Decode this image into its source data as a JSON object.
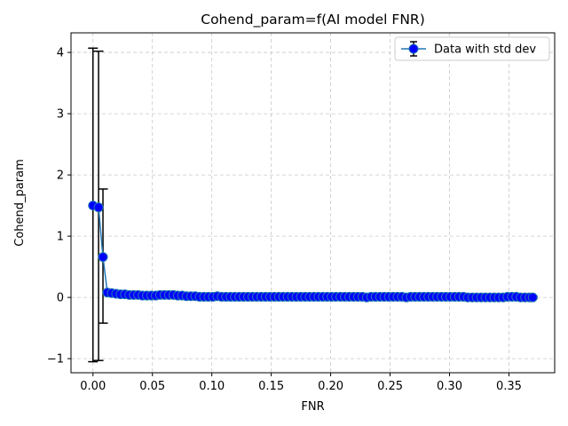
{
  "chart_data": {
    "type": "line",
    "title": "Cohend_param=f(AI model FNR)",
    "xlabel": "FNR",
    "ylabel": "Cohend_param",
    "xlim": [
      -0.0185,
      0.3885
    ],
    "ylim": [
      -1.23,
      4.32
    ],
    "xticks": [
      0.0,
      0.05,
      0.1,
      0.15,
      0.2,
      0.25,
      0.3,
      0.35
    ],
    "xtick_labels": [
      "0.00",
      "0.05",
      "0.10",
      "0.15",
      "0.20",
      "0.25",
      "0.30",
      "0.35"
    ],
    "yticks": [
      -1,
      0,
      1,
      2,
      3,
      4
    ],
    "ytick_labels": [
      "−1",
      "0",
      "1",
      "2",
      "3",
      "4"
    ],
    "grid": true,
    "legend": {
      "position": "top-right",
      "label": "Data with std dev"
    },
    "colors": {
      "line": "#1f77b4",
      "marker": "#0000ff",
      "errorbar": "#000000",
      "grid": "#c8c8c8"
    },
    "series": [
      {
        "name": "Data with std dev",
        "x": [
          0.0,
          0.0047,
          0.0084,
          0.0121,
          0.0158,
          0.0195,
          0.0232,
          0.0269,
          0.0306,
          0.0343,
          0.038,
          0.0417,
          0.0454,
          0.0491,
          0.0528,
          0.0565,
          0.0602,
          0.0639,
          0.0676,
          0.0713,
          0.075,
          0.0787,
          0.0824,
          0.0861,
          0.0898,
          0.0935,
          0.0972,
          0.1009,
          0.1046,
          0.1083,
          0.112,
          0.1157,
          0.1194,
          0.1231,
          0.1268,
          0.1305,
          0.1342,
          0.1379,
          0.1416,
          0.1453,
          0.149,
          0.1527,
          0.1564,
          0.1601,
          0.1638,
          0.1675,
          0.1712,
          0.1749,
          0.1786,
          0.1823,
          0.186,
          0.1897,
          0.1934,
          0.1971,
          0.2008,
          0.2045,
          0.2082,
          0.2119,
          0.2156,
          0.2193,
          0.223,
          0.2267,
          0.2304,
          0.2341,
          0.2378,
          0.2415,
          0.2452,
          0.2489,
          0.2526,
          0.2563,
          0.26,
          0.2637,
          0.2674,
          0.2711,
          0.2748,
          0.2785,
          0.2822,
          0.2859,
          0.2896,
          0.2933,
          0.297,
          0.3007,
          0.3044,
          0.3081,
          0.3118,
          0.3155,
          0.3192,
          0.3229,
          0.3266,
          0.3303,
          0.334,
          0.3377,
          0.3414,
          0.3451,
          0.3488,
          0.3525,
          0.3562,
          0.3599,
          0.3636,
          0.3673,
          0.37
        ],
        "y": [
          1.5,
          1.47,
          0.66,
          0.08,
          0.07,
          0.06,
          0.05,
          0.05,
          0.04,
          0.04,
          0.04,
          0.03,
          0.03,
          0.03,
          0.03,
          0.04,
          0.04,
          0.04,
          0.04,
          0.03,
          0.03,
          0.02,
          0.02,
          0.02,
          0.01,
          0.01,
          0.01,
          0.01,
          0.02,
          0.01,
          0.01,
          0.01,
          0.01,
          0.01,
          0.01,
          0.01,
          0.01,
          0.01,
          0.01,
          0.01,
          0.01,
          0.01,
          0.01,
          0.01,
          0.01,
          0.01,
          0.01,
          0.01,
          0.01,
          0.01,
          0.01,
          0.01,
          0.01,
          0.01,
          0.01,
          0.01,
          0.01,
          0.01,
          0.01,
          0.01,
          0.01,
          0.01,
          0.0,
          0.01,
          0.01,
          0.01,
          0.01,
          0.01,
          0.01,
          0.01,
          0.01,
          0.0,
          0.01,
          0.01,
          0.01,
          0.01,
          0.01,
          0.01,
          0.01,
          0.01,
          0.01,
          0.01,
          0.01,
          0.01,
          0.01,
          0.0,
          0.0,
          0.0,
          0.0,
          0.0,
          0.0,
          0.0,
          0.0,
          0.0,
          0.01,
          0.01,
          0.01,
          0.0,
          0.0,
          0.0,
          0.0
        ],
        "yerr_lower": [
          2.55,
          2.5,
          1.08,
          0.02,
          0.02,
          0.02,
          0.02,
          0.02,
          0.02,
          0.02,
          0.02,
          0.02,
          0.02,
          0.02,
          0.02,
          0.02,
          0.02,
          0.02,
          0.02,
          0.02,
          0.02,
          0.02,
          0.02,
          0.02,
          0.02,
          0.02,
          0.02,
          0.02,
          0.02,
          0.02,
          0.02,
          0.02,
          0.02,
          0.02,
          0.02,
          0.02,
          0.02,
          0.02,
          0.02,
          0.02,
          0.02,
          0.02,
          0.02,
          0.02,
          0.02,
          0.02,
          0.02,
          0.02,
          0.02,
          0.02,
          0.02,
          0.02,
          0.02,
          0.02,
          0.02,
          0.02,
          0.02,
          0.02,
          0.02,
          0.02,
          0.02,
          0.02,
          0.02,
          0.02,
          0.02,
          0.02,
          0.02,
          0.02,
          0.02,
          0.02,
          0.02,
          0.02,
          0.02,
          0.02,
          0.02,
          0.02,
          0.02,
          0.02,
          0.02,
          0.02,
          0.02,
          0.02,
          0.02,
          0.02,
          0.02,
          0.02,
          0.02,
          0.02,
          0.02,
          0.02,
          0.02,
          0.02,
          0.02,
          0.02,
          0.02,
          0.02,
          0.02,
          0.02,
          0.02,
          0.02,
          0.02
        ],
        "yerr_upper": [
          2.57,
          2.55,
          1.11,
          0.02,
          0.02,
          0.02,
          0.02,
          0.02,
          0.02,
          0.02,
          0.02,
          0.02,
          0.02,
          0.02,
          0.02,
          0.02,
          0.02,
          0.02,
          0.02,
          0.02,
          0.02,
          0.02,
          0.02,
          0.02,
          0.02,
          0.02,
          0.02,
          0.02,
          0.02,
          0.02,
          0.02,
          0.02,
          0.02,
          0.02,
          0.02,
          0.02,
          0.02,
          0.02,
          0.02,
          0.02,
          0.02,
          0.02,
          0.02,
          0.02,
          0.02,
          0.02,
          0.02,
          0.02,
          0.02,
          0.02,
          0.02,
          0.02,
          0.02,
          0.02,
          0.02,
          0.02,
          0.02,
          0.02,
          0.02,
          0.02,
          0.02,
          0.02,
          0.02,
          0.02,
          0.02,
          0.02,
          0.02,
          0.02,
          0.02,
          0.02,
          0.02,
          0.02,
          0.02,
          0.02,
          0.02,
          0.02,
          0.02,
          0.02,
          0.02,
          0.02,
          0.02,
          0.02,
          0.02,
          0.02,
          0.02,
          0.02,
          0.02,
          0.02,
          0.02,
          0.02,
          0.02,
          0.02,
          0.02,
          0.02,
          0.02,
          0.02,
          0.02,
          0.02,
          0.02,
          0.02,
          0.02
        ]
      }
    ]
  }
}
